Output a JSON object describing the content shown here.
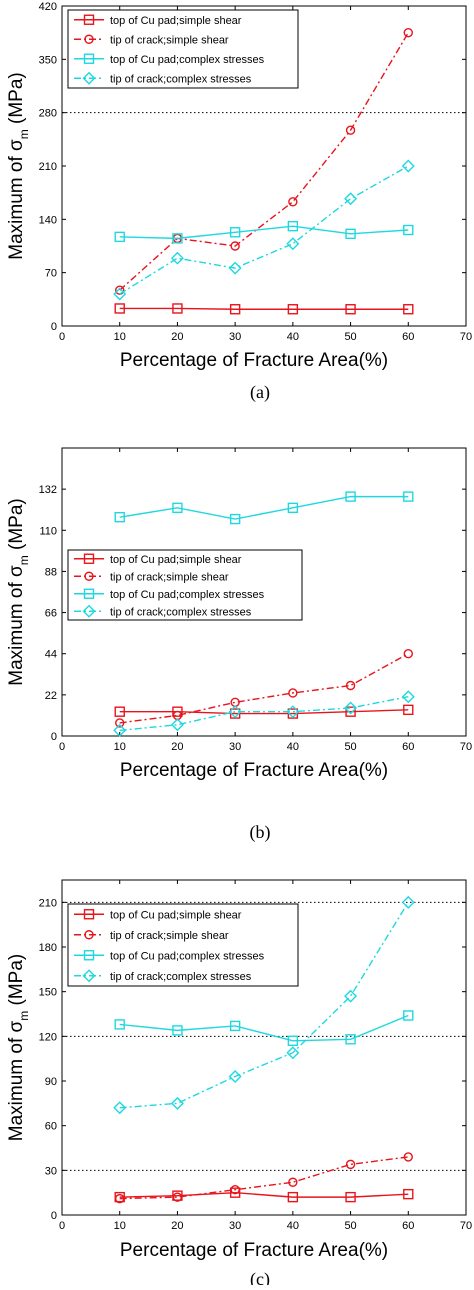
{
  "charts": [
    {
      "caption": "(a)",
      "chart_data": {
        "type": "line",
        "xlabel": "Percentage of Fracture Area(%)",
        "ylabel_main": "Maximum of σ",
        "ylabel_sub": "m",
        "ylabel_unit": " (MPa)",
        "xlim": [
          0,
          70
        ],
        "ylim": [
          0,
          420
        ],
        "xticks": [
          0,
          10,
          20,
          30,
          40,
          50,
          60,
          70
        ],
        "yticks": [
          0,
          70,
          140,
          210,
          280,
          350,
          420
        ],
        "dotted_gridlines_y": [
          280
        ],
        "legend_position": "top-left",
        "x": [
          10,
          20,
          30,
          40,
          50,
          60
        ],
        "series": [
          {
            "name": "top of Cu pad;simple shear",
            "color": "#e8141c",
            "style": "solid",
            "marker": "square",
            "values": [
              23,
              23,
              22,
              22,
              22,
              22
            ]
          },
          {
            "name": "tip of crack;simple shear",
            "color": "#e8141c",
            "style": "dashdot",
            "marker": "circle",
            "values": [
              47,
              115,
              105,
              163,
              257,
              385
            ]
          },
          {
            "name": "top of Cu pad;complex stresses",
            "color": "#1ed8e0",
            "style": "solid",
            "marker": "square",
            "values": [
              117,
              115,
              123,
              131,
              121,
              126
            ]
          },
          {
            "name": "tip of crack;complex stresses",
            "color": "#1ed8e0",
            "style": "dashdot",
            "marker": "diamond",
            "values": [
              42,
              89,
              76,
              108,
              167,
              210
            ]
          }
        ]
      }
    },
    {
      "caption": "(b)",
      "chart_data": {
        "type": "line",
        "xlabel": "Percentage of Fracture Area(%)",
        "ylabel_main": "Maximum of σ",
        "ylabel_sub": "m",
        "ylabel_unit": " (MPa)",
        "xlim": [
          0,
          70
        ],
        "ylim": [
          0,
          154
        ],
        "xticks": [
          0,
          10,
          20,
          30,
          40,
          50,
          60,
          70
        ],
        "yticks": [
          0,
          22,
          44,
          66,
          88,
          110,
          132
        ],
        "dotted_gridlines_y": [],
        "legend_position": "middle-left",
        "x": [
          10,
          20,
          30,
          40,
          50,
          60
        ],
        "series": [
          {
            "name": "top of Cu pad;simple shear",
            "color": "#e8141c",
            "style": "solid",
            "marker": "square",
            "values": [
              13,
              13,
              12,
              12,
              13,
              14
            ]
          },
          {
            "name": "tip of crack;simple shear",
            "color": "#e8141c",
            "style": "dashdot",
            "marker": "circle",
            "values": [
              7,
              11,
              18,
              23,
              27,
              44
            ]
          },
          {
            "name": "top of Cu pad;complex stresses",
            "color": "#1ed8e0",
            "style": "solid",
            "marker": "square",
            "values": [
              117,
              122,
              116,
              122,
              128,
              128
            ]
          },
          {
            "name": "tip of crack;complex stresses",
            "color": "#1ed8e0",
            "style": "dashdot",
            "marker": "diamond",
            "values": [
              3,
              6,
              13,
              13,
              15,
              21
            ]
          }
        ]
      }
    },
    {
      "caption": "(c)",
      "chart_data": {
        "type": "line",
        "xlabel": "Percentage of Fracture Area(%)",
        "ylabel_main": "Maximum of σ",
        "ylabel_sub": "m",
        "ylabel_unit": " (MPa)",
        "xlim": [
          0,
          70
        ],
        "ylim": [
          0,
          225
        ],
        "xticks": [
          0,
          10,
          20,
          30,
          40,
          50,
          60,
          70
        ],
        "yticks": [
          0,
          30,
          60,
          90,
          120,
          150,
          180,
          210
        ],
        "dotted_gridlines_y": [
          30,
          120,
          210
        ],
        "legend_position": "top-left",
        "x": [
          10,
          20,
          30,
          40,
          50,
          60
        ],
        "series": [
          {
            "name": "top of Cu pad;simple shear",
            "color": "#e8141c",
            "style": "solid",
            "marker": "square",
            "values": [
              12,
              13,
              15,
              12,
              12,
              14
            ]
          },
          {
            "name": "tip of crack;simple shear",
            "color": "#e8141c",
            "style": "dashdot",
            "marker": "circle",
            "values": [
              11,
              12,
              17,
              22,
              34,
              39
            ]
          },
          {
            "name": "top of Cu pad;complex stresses",
            "color": "#1ed8e0",
            "style": "solid",
            "marker": "square",
            "values": [
              128,
              124,
              127,
              117,
              118,
              134
            ]
          },
          {
            "name": "tip of crack;complex stresses",
            "color": "#1ed8e0",
            "style": "dashdot",
            "marker": "diamond",
            "values": [
              72,
              75,
              93,
              109,
              147,
              210
            ]
          }
        ]
      }
    }
  ]
}
